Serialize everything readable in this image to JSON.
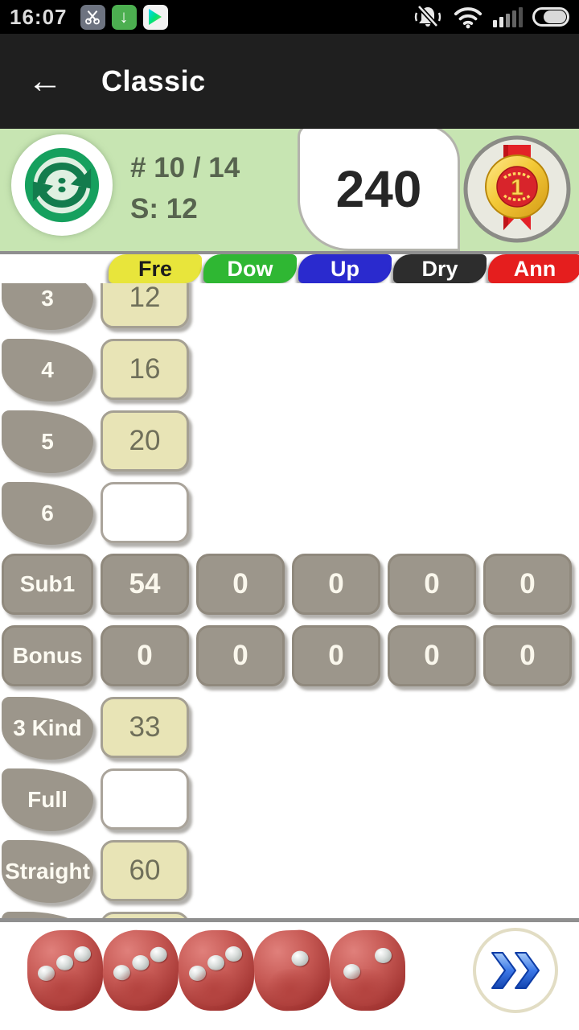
{
  "status_bar": {
    "time": "16:07",
    "app_icons": [
      "screenshot-scissors",
      "download-complete",
      "play-store"
    ],
    "system_icons": [
      "muted-bell",
      "wifi",
      "signal-strength",
      "battery"
    ],
    "download_arrow": "↓"
  },
  "app_bar": {
    "title": "Classic",
    "back_glyph": "←"
  },
  "header": {
    "round_counter": "# 10 / 14",
    "score_line": "S: 12",
    "total_score": "240",
    "medal_rank": "1",
    "background_color": "#c7e5b2"
  },
  "tab_bar": {
    "tabs": [
      {
        "label": "Fre",
        "color": "#e8e53b"
      },
      {
        "label": "Dow",
        "color": "#2fb733"
      },
      {
        "label": "Up",
        "color": "#2a2ace"
      },
      {
        "label": "Dry",
        "color": "#2d2d2d"
      },
      {
        "label": "Ann",
        "color": "#e51e1e"
      }
    ]
  },
  "table": {
    "rows": [
      {
        "label": "3",
        "cells": [
          "12"
        ]
      },
      {
        "label": "4",
        "cells": [
          "16"
        ]
      },
      {
        "label": "5",
        "cells": [
          "20"
        ]
      },
      {
        "label": "6",
        "cells": [
          ""
        ]
      },
      {
        "label": "Sub1",
        "cells": [
          "54",
          "0",
          "0",
          "0",
          "0"
        ]
      },
      {
        "label": "Bonus",
        "cells": [
          "0",
          "0",
          "0",
          "0",
          "0"
        ]
      },
      {
        "label": "3 Kind",
        "cells": [
          "33"
        ]
      },
      {
        "label": "Full",
        "cells": [
          ""
        ]
      },
      {
        "label": "Straight",
        "cells": [
          "60"
        ]
      },
      {
        "label": "",
        "cells": [
          ""
        ]
      }
    ],
    "cell_colors": {
      "scored": "#e8e4b6",
      "computed": "#9c968b",
      "empty": "#ffffff"
    }
  },
  "footer": {
    "dice": [
      3,
      3,
      3,
      1,
      2
    ],
    "dice_color": "#c0504d",
    "fast_forward_icon": "double-chevron-right"
  }
}
